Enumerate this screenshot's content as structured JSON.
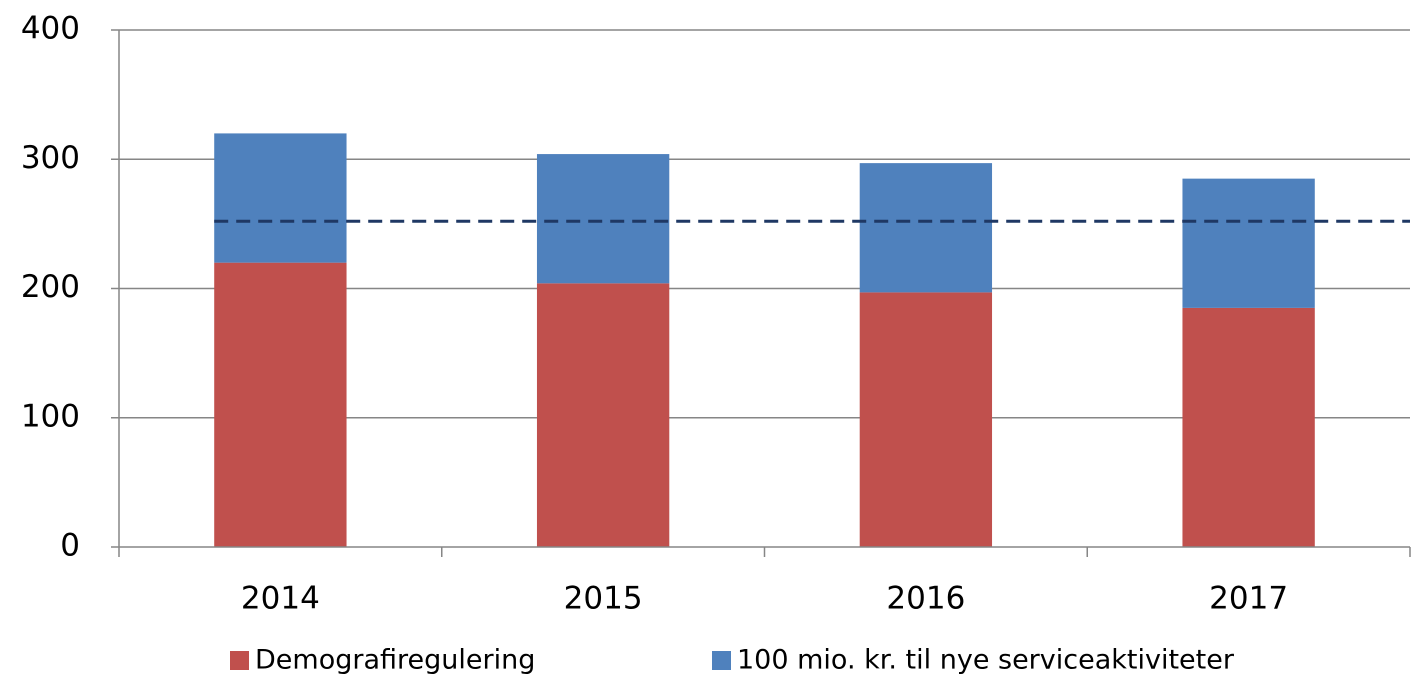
{
  "chart_data": {
    "type": "stacked_bar",
    "categories": [
      "2014",
      "2015",
      "2016",
      "2017"
    ],
    "series": [
      {
        "name": "Demografiregulering",
        "color": "#c0504d",
        "values": [
          220,
          204,
          197,
          185
        ]
      },
      {
        "name": "100 mio. kr. til nye serviceaktiviteter",
        "color": "#4f81bd",
        "values": [
          100,
          100,
          100,
          100
        ]
      }
    ],
    "reference_line": {
      "value": 252,
      "color": "#1f3864"
    },
    "ylim": [
      0,
      400
    ],
    "yticks": [
      0,
      100,
      200,
      300,
      400
    ],
    "grid": true,
    "legend": "bottom"
  }
}
